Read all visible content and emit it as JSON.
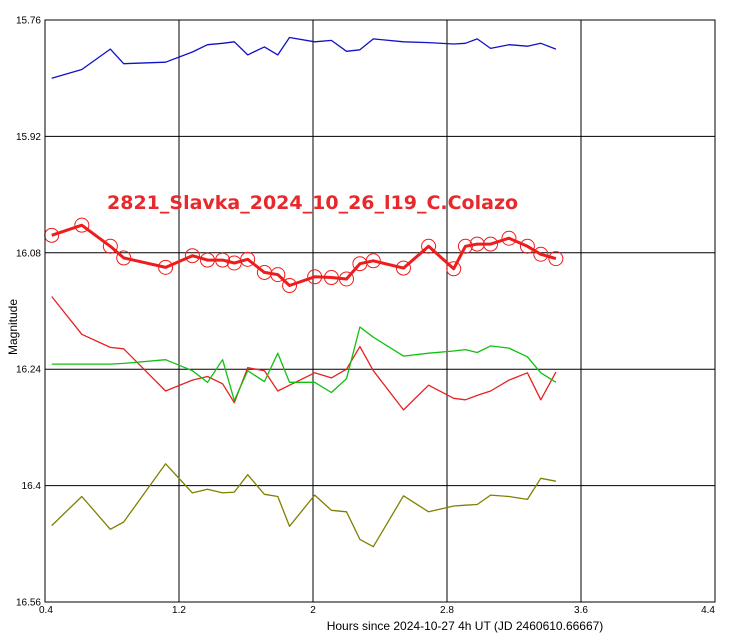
{
  "chart_data": {
    "type": "line",
    "title": "2821_Slavka_2024_10_26_l19_C.Colazo",
    "title_color": "#e8282b",
    "xlabel": "Hours since 2024-10-27 4h UT (JD 2460610.66667)",
    "ylabel": "Magnitude",
    "xlim": [
      0.4,
      4.4
    ],
    "ylim": [
      15.76,
      16.56
    ],
    "y_inverted": true,
    "x_ticks": [
      "0.4",
      "1.2",
      "2",
      "2.8",
      "3.6",
      "4.4"
    ],
    "y_ticks": [
      "15.76",
      "15.92",
      "16.08",
      "16.24",
      "16.4",
      "16.56"
    ],
    "grid": true,
    "series": [
      {
        "color": "#1010c8",
        "markers": false,
        "x": [
          0.44,
          0.62,
          0.79,
          0.87,
          1.12,
          1.28,
          1.37,
          1.46,
          1.53,
          1.61,
          1.71,
          1.79,
          1.86,
          2.01,
          2.11,
          2.2,
          2.28,
          2.36,
          2.54,
          2.69,
          2.84,
          2.91,
          2.98,
          3.06,
          3.17,
          3.28,
          3.36,
          3.45
        ],
        "y": [
          15.84,
          15.828,
          15.8,
          15.82,
          15.818,
          15.804,
          15.794,
          15.792,
          15.79,
          15.808,
          15.797,
          15.808,
          15.784,
          15.79,
          15.788,
          15.803,
          15.801,
          15.786,
          15.79,
          15.791,
          15.793,
          15.792,
          15.786,
          15.799,
          15.794,
          15.796,
          15.792,
          15.8
        ]
      },
      {
        "color": "#ee1c1c",
        "markers": true,
        "x": [
          0.44,
          0.62,
          0.79,
          0.87,
          1.12,
          1.28,
          1.37,
          1.46,
          1.53,
          1.61,
          1.71,
          1.79,
          1.86,
          2.01,
          2.11,
          2.2,
          2.28,
          2.36,
          2.54,
          2.69,
          2.84,
          2.91,
          2.98,
          3.06,
          3.17,
          3.28,
          3.36,
          3.45
        ],
        "y": [
          16.056,
          16.042,
          16.071,
          16.087,
          16.1,
          16.084,
          16.09,
          16.09,
          16.094,
          16.089,
          16.107,
          16.11,
          16.125,
          16.113,
          16.114,
          16.116,
          16.095,
          16.091,
          16.101,
          16.071,
          16.102,
          16.071,
          16.068,
          16.068,
          16.06,
          16.071,
          16.082,
          16.088
        ]
      },
      {
        "color": "#e82020",
        "markers": false,
        "x": [
          0.44,
          0.62,
          0.79,
          0.87,
          1.12,
          1.28,
          1.37,
          1.46,
          1.53,
          1.61,
          1.71,
          1.79,
          1.86,
          2.01,
          2.11,
          2.2,
          2.28,
          2.36,
          2.54,
          2.69,
          2.84,
          2.91,
          2.98,
          3.06,
          3.17,
          3.28,
          3.36,
          3.45
        ],
        "y": [
          16.14,
          16.192,
          16.21,
          16.212,
          16.27,
          16.255,
          16.25,
          16.26,
          16.286,
          16.238,
          16.242,
          16.27,
          16.262,
          16.245,
          16.252,
          16.24,
          16.209,
          16.242,
          16.296,
          16.262,
          16.28,
          16.282,
          16.276,
          16.27,
          16.255,
          16.245,
          16.282,
          16.244
        ]
      },
      {
        "color": "#10c010",
        "markers": false,
        "x": [
          0.44,
          0.62,
          0.79,
          0.87,
          1.12,
          1.28,
          1.37,
          1.46,
          1.53,
          1.61,
          1.71,
          1.79,
          1.86,
          2.01,
          2.11,
          2.2,
          2.28,
          2.36,
          2.54,
          2.69,
          2.84,
          2.91,
          2.98,
          3.06,
          3.17,
          3.28,
          3.36,
          3.45
        ],
        "y": [
          16.233,
          16.233,
          16.233,
          16.232,
          16.227,
          16.242,
          16.258,
          16.227,
          16.283,
          16.242,
          16.257,
          16.218,
          16.258,
          16.258,
          16.272,
          16.253,
          16.182,
          16.196,
          16.222,
          16.218,
          16.215,
          16.213,
          16.217,
          16.208,
          16.211,
          16.223,
          16.245,
          16.258
        ]
      },
      {
        "color": "#808000",
        "markers": false,
        "x": [
          0.44,
          0.62,
          0.79,
          0.87,
          1.12,
          1.28,
          1.37,
          1.46,
          1.53,
          1.61,
          1.71,
          1.79,
          1.86,
          2.01,
          2.11,
          2.2,
          2.28,
          2.36,
          2.54,
          2.69,
          2.84,
          2.91,
          2.98,
          3.06,
          3.17,
          3.28,
          3.36,
          3.45
        ],
        "y": [
          16.455,
          16.415,
          16.46,
          16.45,
          16.37,
          16.41,
          16.405,
          16.41,
          16.409,
          16.385,
          16.412,
          16.415,
          16.456,
          16.413,
          16.434,
          16.436,
          16.474,
          16.484,
          16.414,
          16.436,
          16.428,
          16.427,
          16.426,
          16.413,
          16.415,
          16.419,
          16.39,
          16.394
        ]
      }
    ]
  }
}
